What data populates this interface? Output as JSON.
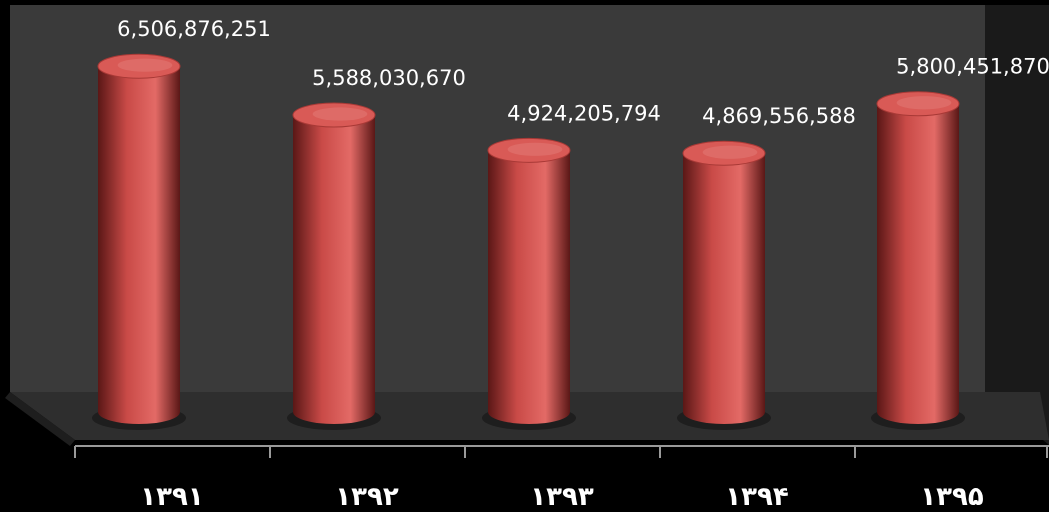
{
  "chart_data": {
    "type": "bar",
    "style": "3d-cylinder",
    "categories": [
      "۱۳۹۱",
      "۱۳۹۲",
      "۱۳۹۳",
      "۱۳۹۴",
      "۱۳۹۵"
    ],
    "values": [
      6506876251,
      5588030670,
      4924205794,
      4869556588,
      5800451870
    ],
    "value_labels": [
      "6,506,876,251",
      "5,588,030,670",
      "4,924,205,794",
      "4,869,556,588",
      "5,800,451,870"
    ],
    "ylim": [
      0,
      7000000000
    ],
    "grid": false,
    "legend": "none",
    "colors": {
      "bar": "#c94a47",
      "bar_highlight": "#e36a66",
      "bar_shadow": "#5a1716",
      "bar_top": "#d95a56",
      "back_wall": "#3a3a3a",
      "floor": "#2e2e2e",
      "background": "#000000",
      "text": "#ffffff"
    }
  }
}
